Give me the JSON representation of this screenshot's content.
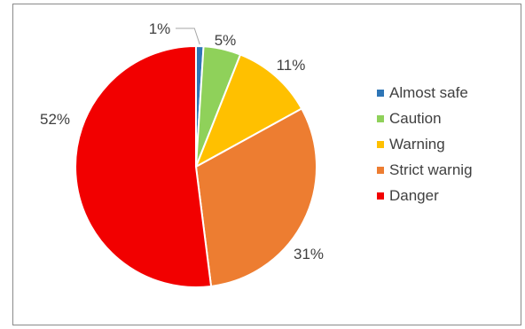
{
  "chart_data": {
    "type": "pie",
    "title": "",
    "legend_position": "right",
    "slices": [
      {
        "label": "Almost safe",
        "value": 1,
        "display": "1%",
        "color": "#2E75B6"
      },
      {
        "label": "Caution",
        "value": 5,
        "display": "5%",
        "color": "#8FD15A"
      },
      {
        "label": "Warning",
        "value": 11,
        "display": "11%",
        "color": "#FFC000"
      },
      {
        "label": "Strict warnig",
        "value": 31,
        "display": "31%",
        "color": "#ED7D31"
      },
      {
        "label": "Danger",
        "value": 52,
        "display": "52%",
        "color": "#F20000"
      }
    ]
  }
}
